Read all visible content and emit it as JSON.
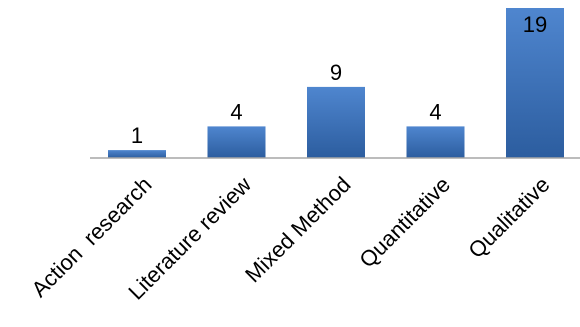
{
  "chart_data": {
    "type": "bar",
    "title": "",
    "xlabel": "",
    "ylabel": "",
    "categories": [
      "Action  research",
      "Literature review",
      "Mixed Method",
      "Quantitative",
      "Qualitative"
    ],
    "values": [
      1,
      4,
      9,
      4,
      19
    ],
    "value_labels": [
      "1",
      "4",
      "9",
      "4",
      "19"
    ],
    "ylim": [
      0,
      19
    ],
    "grid": false,
    "legend": "none",
    "colors": {
      "bar_top": "#4f86cf",
      "bar_bottom": "#2c5d9f",
      "axis": "#a6a6a6",
      "text": "#000000"
    }
  }
}
